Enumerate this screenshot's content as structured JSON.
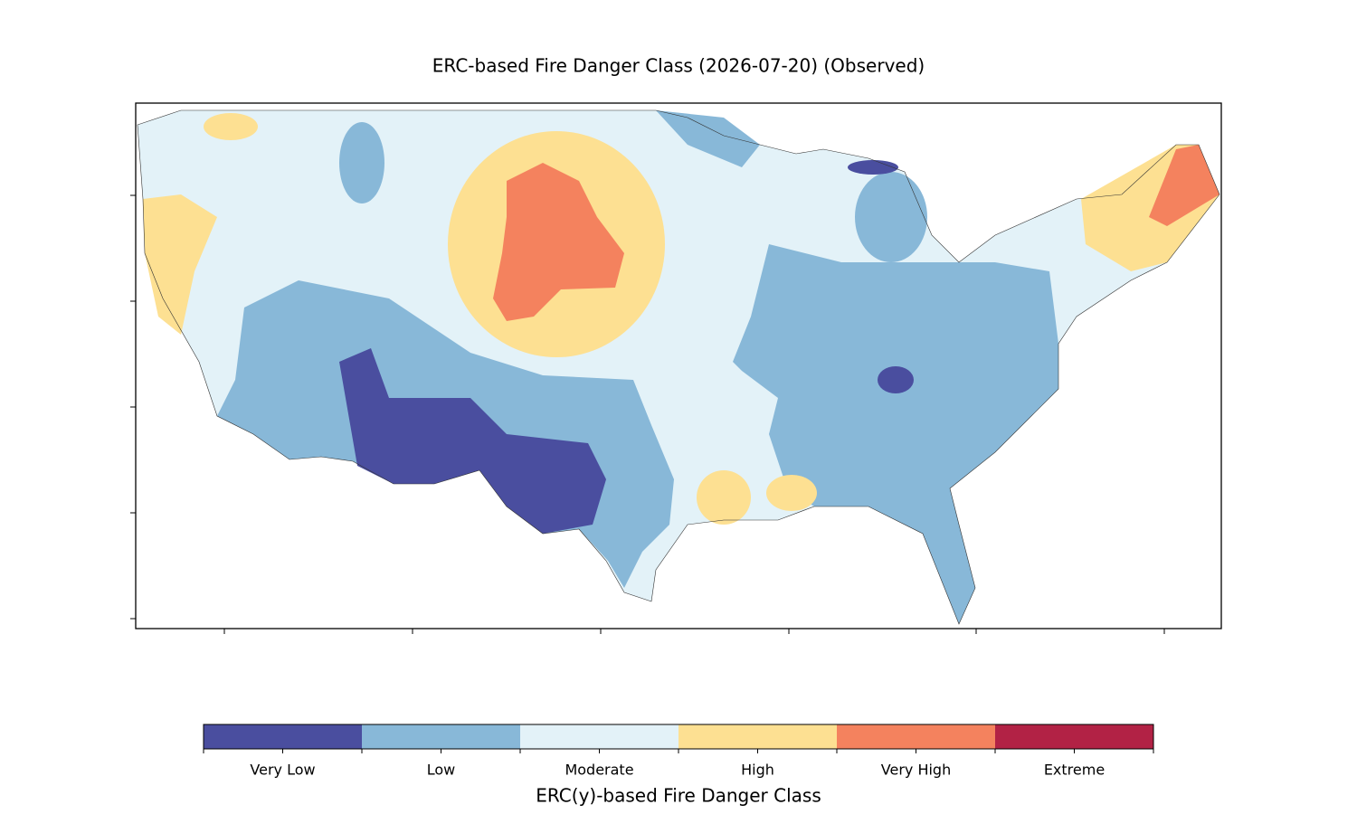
{
  "title": "ERC-based Fire Danger Class (2026-07-20) (Observed)",
  "colorbar": {
    "label": "ERC(y)-based Fire Danger Class",
    "classes": [
      {
        "name": "Very Low",
        "color": "#4a4e9f"
      },
      {
        "name": "Low",
        "color": "#88b8d8"
      },
      {
        "name": "Moderate",
        "color": "#e3f2f8"
      },
      {
        "name": "High",
        "color": "#fde092"
      },
      {
        "name": "Very High",
        "color": "#f4825e"
      },
      {
        "name": "Extreme",
        "color": "#b22245"
      }
    ]
  }
}
